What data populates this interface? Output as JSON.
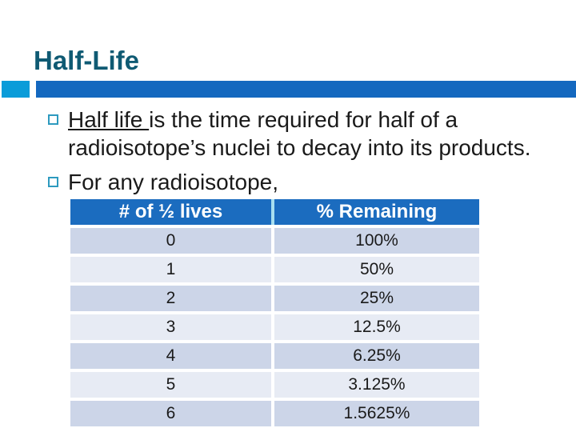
{
  "title": "Half-Life",
  "bullets": [
    {
      "underlined": "Half life ",
      "rest": "is the time required for half of a radioisotope’s nuclei to decay into its products."
    },
    {
      "underlined": "",
      "rest": "For any radioisotope,"
    }
  ],
  "table": {
    "headers": [
      "# of ½ lives",
      "% Remaining"
    ],
    "rows": [
      [
        "0",
        "100%"
      ],
      [
        "1",
        "50%"
      ],
      [
        "2",
        "25%"
      ],
      [
        "3",
        "12.5%"
      ],
      [
        "4",
        "6.25%"
      ],
      [
        "5",
        "3.125%"
      ],
      [
        "6",
        "1.5625%"
      ]
    ]
  },
  "colors": {
    "title_text": "#0F5A73",
    "bar_dark": "#1468BF",
    "bar_light": "#0A9CD9",
    "bullet_outline": "#2D9ABF",
    "table_header_bg": "#1B6CBF",
    "table_header_text": "#FFFFFF",
    "header_divider": "#A6DEF0",
    "row_band_dark": "#CCD5E8",
    "row_band_light": "#E7EBF4",
    "body_text": "#1A1A1A"
  }
}
